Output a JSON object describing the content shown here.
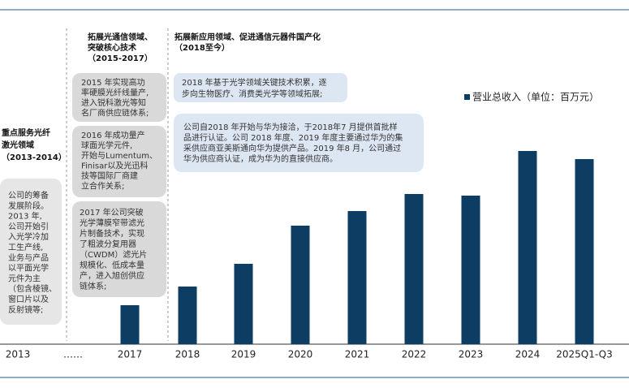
{
  "chart_data": {
    "type": "bar",
    "categories": [
      "2013",
      "……",
      "2017",
      "2018",
      "2019",
      "2020",
      "2021",
      "2022",
      "2023",
      "2024",
      "2025Q1-Q3"
    ],
    "series": [
      {
        "name": "营业总收入（单位：百万元）",
        "color": "#0d3d63",
        "values": [
          null,
          null,
          48,
          71,
          99,
          146,
          164,
          185,
          183,
          238,
          228
        ]
      }
    ],
    "legend": "upper right",
    "annotations": {
      "phase1_title": [
        "重点服务光纤",
        "激光领域",
        "（2013-2014）"
      ],
      "phase2_title": [
        "拓展光通信领域、",
        "突破核心技术",
        "（2015-2017）"
      ],
      "phase3_title": [
        "拓展新应用领域、促进通信元器件国产化",
        "（2018至今）"
      ],
      "phase1_note": [
        "公司的筹备",
        "发展阶段。",
        "2013 年,",
        "公司开始引",
        "入光学冷加",
        "工生产线,",
        "业务与产品",
        "以平面光学",
        "元件为主",
        "（包含棱镜、",
        "窗口片以及",
        "反射镜等;"
      ],
      "note_2015": [
        "2015 年实现高功",
        "率硬膜光纤线量产,",
        "进入锐科激光等知",
        "名厂商供应链体系;"
      ],
      "note_2016": [
        "2016 年成功量产",
        "球面光学元件,",
        "开始与Lumentum、",
        "Finisar以及光迅科",
        "技等国际厂商建",
        "立合作关系;"
      ],
      "note_2017": [
        "2017 年公司突破",
        "光学薄膜窄带滤光",
        "片制备技术，实现",
        "了粗波分复用器",
        "（CWDM）滤光片",
        "规模化、低成本量",
        "产，进入旭创供应",
        "链体系;"
      ],
      "note_2018a": [
        "2018 年基于光学领域关键技术积累，逐",
        "步向生物医疗、消费类光学等领域拓展;"
      ],
      "note_2018b": [
        "公司自2018 年开始与华为接洽，于2018年7 月提供首批样",
        "品进行认证。公司 2018 年度、2019 年度主要通过华为的集",
        "采供应商亚美斯通向华为提供产品。2019 年8 月，公司通过",
        "华为供应商认证，成为华为的直接供应商。"
      ]
    }
  }
}
